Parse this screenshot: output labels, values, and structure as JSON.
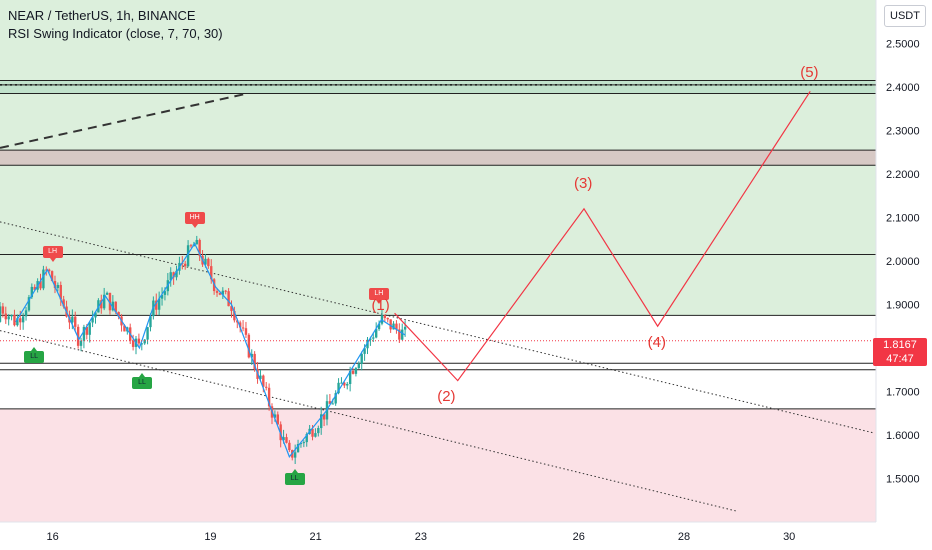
{
  "header": {
    "symbol_line": "NEAR / TetherUS, 1h, BINANCE",
    "indicator_line": "RSI Swing Indicator (close, 7, 70, 30)"
  },
  "currency": "USDT",
  "last_price": {
    "value": "1.8167",
    "countdown": "47:47"
  },
  "colors": {
    "bull_zone": "#dcefdc",
    "bear_zone": "#fbe1e6",
    "supply_band": "#d7c9c5",
    "top_band": "#c1e2cc",
    "wave": "#f23645",
    "swing": "#2196f3",
    "up_candle": "#26a69a",
    "down_candle": "#ef5350"
  },
  "chart_data": {
    "type": "line",
    "title": "NEAR / TetherUS, 1h, BINANCE",
    "xlabel": "",
    "ylabel": "",
    "ylim": [
      1.4,
      2.6
    ],
    "x_ticks": [
      {
        "label": "16",
        "x": 16
      },
      {
        "label": "19",
        "x": 19
      },
      {
        "label": "21",
        "x": 21
      },
      {
        "label": "23",
        "x": 23
      },
      {
        "label": "26",
        "x": 26
      },
      {
        "label": "28",
        "x": 28
      },
      {
        "label": "30",
        "x": 30
      }
    ],
    "y_ticks": [
      "1.5000",
      "1.6000",
      "1.7000",
      "1.8000",
      "1.9000",
      "2.0000",
      "2.1000",
      "2.2000",
      "2.3000",
      "2.4000",
      "2.5000"
    ],
    "zones": [
      {
        "name": "bull",
        "from": 1.66,
        "to": 2.6
      },
      {
        "name": "bear",
        "from": 1.4,
        "to": 1.66
      }
    ],
    "horizontal_levels": [
      1.66,
      1.75,
      1.765,
      1.875,
      2.015,
      2.22,
      2.255,
      2.385,
      2.405,
      2.415
    ],
    "bands": [
      {
        "name": "supply_band",
        "from": 2.22,
        "to": 2.255
      },
      {
        "name": "top_band",
        "from": 2.385,
        "to": 2.415
      }
    ],
    "series": [
      {
        "name": "",
        "role": "swing",
        "points": [
          [
            15.3,
            1.86
          ],
          [
            15.9,
            1.98
          ],
          [
            16.5,
            1.82
          ],
          [
            17.0,
            1.92
          ],
          [
            17.65,
            1.8
          ],
          [
            17.9,
            1.89
          ],
          [
            18.7,
            2.04
          ],
          [
            19.1,
            1.94
          ],
          [
            19.4,
            1.9
          ],
          [
            20.5,
            1.55
          ],
          [
            20.9,
            1.61
          ],
          [
            21.2,
            1.655
          ],
          [
            22.25,
            1.865
          ],
          [
            22.7,
            1.83
          ]
        ]
      },
      {
        "name": "",
        "role": "elliott_projection",
        "points": [
          [
            22.5,
            1.88
          ],
          [
            23.7,
            1.725
          ],
          [
            26.1,
            2.12
          ],
          [
            27.5,
            1.85
          ],
          [
            30.4,
            2.39
          ]
        ]
      }
    ],
    "trendlines": [
      {
        "style": "dotted",
        "points": [
          [
            15.0,
            2.09
          ],
          [
            31.6,
            1.605
          ]
        ]
      },
      {
        "style": "dotted",
        "points": [
          [
            15.0,
            1.84
          ],
          [
            29.0,
            1.425
          ]
        ]
      },
      {
        "style": "dashed",
        "points": [
          [
            15.0,
            2.26
          ],
          [
            19.7,
            2.385
          ]
        ]
      }
    ],
    "wave_labels": [
      {
        "text": "(1)",
        "x": 22.25,
        "y": 1.895
      },
      {
        "text": "(2)",
        "x": 23.5,
        "y": 1.685
      },
      {
        "text": "(3)",
        "x": 26.1,
        "y": 2.175
      },
      {
        "text": "(4)",
        "x": 27.5,
        "y": 1.81
      },
      {
        "text": "(5)",
        "x": 30.4,
        "y": 2.43
      }
    ],
    "swing_markers": [
      {
        "text": "LH",
        "kind": "high",
        "x": 16.0,
        "y": 2.02
      },
      {
        "text": "HH",
        "kind": "high",
        "x": 18.7,
        "y": 2.1
      },
      {
        "text": "LH",
        "kind": "high",
        "x": 22.2,
        "y": 1.925
      },
      {
        "text": "LL",
        "kind": "low",
        "x": 15.65,
        "y": 1.78
      },
      {
        "text": "LL",
        "kind": "low",
        "x": 17.7,
        "y": 1.72
      },
      {
        "text": "LL",
        "kind": "low",
        "x": 20.6,
        "y": 1.5
      }
    ],
    "last_price": 1.8167
  }
}
